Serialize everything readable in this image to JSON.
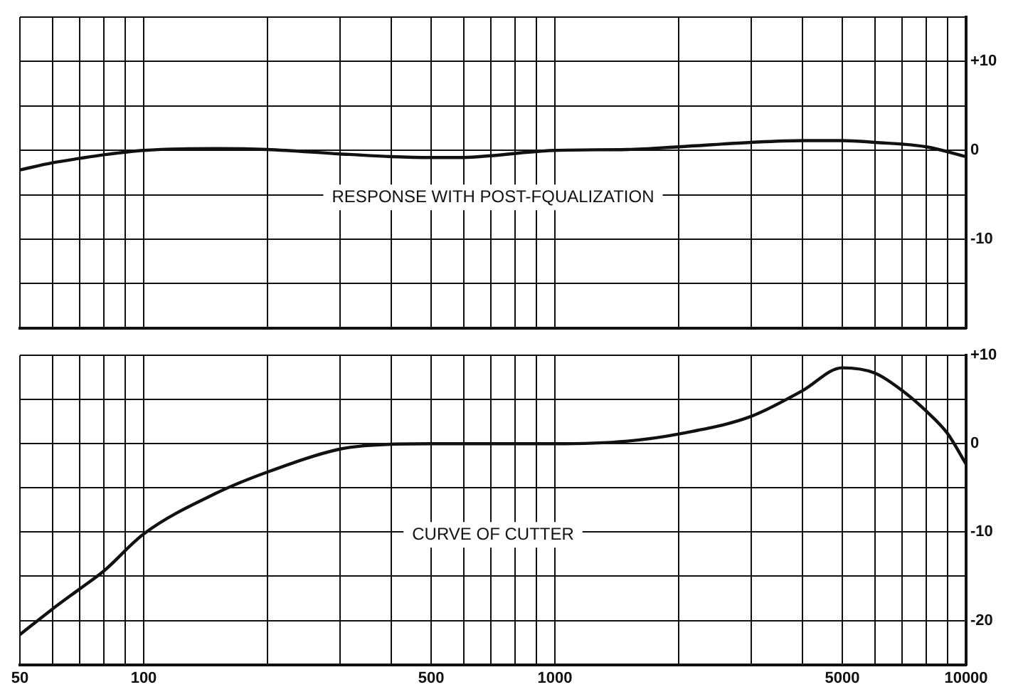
{
  "chart_data": [
    {
      "type": "line",
      "log": "x",
      "grid": true,
      "tick_labels": "y",
      "xlim": [
        50,
        10000
      ],
      "xticks": [
        50,
        {
          "value": 60,
          "label": null
        },
        {
          "value": 70,
          "label": null
        },
        {
          "value": 80,
          "label": null
        },
        {
          "value": 90,
          "label": null
        },
        100,
        {
          "value": 200,
          "label": null
        },
        {
          "value": 300,
          "label": null
        },
        {
          "value": 400,
          "label": null
        },
        500,
        {
          "value": 600,
          "label": null
        },
        {
          "value": 700,
          "label": null
        },
        {
          "value": 800,
          "label": null
        },
        {
          "value": 900,
          "label": null
        },
        1000,
        {
          "value": 2000,
          "label": null
        },
        {
          "value": 3000,
          "label": null
        },
        {
          "value": 4000,
          "label": null
        },
        5000,
        {
          "value": 6000,
          "label": null
        },
        {
          "value": 7000,
          "label": null
        },
        {
          "value": 8000,
          "label": null
        },
        {
          "value": 9000,
          "label": null
        },
        10000
      ],
      "ylim": [
        -20,
        15
      ],
      "yticks": [
        {
          "value": -20,
          "label": null
        },
        {
          "value": -15,
          "label": null
        },
        -10,
        {
          "value": -5,
          "label": null
        },
        0,
        {
          "value": 5,
          "label": null
        },
        {
          "value": 10,
          "label": "+10"
        },
        {
          "value": 15,
          "label": null
        }
      ],
      "series": [
        {
          "color": "#111111",
          "x": [
            50,
            60,
            70,
            80,
            100,
            150,
            200,
            300,
            400,
            500,
            600,
            700,
            1000,
            1500,
            2000,
            3000,
            4000,
            5000,
            6000,
            8000,
            10000
          ],
          "values": [
            -2.2,
            -1.4,
            -0.9,
            -0.5,
            0,
            0.2,
            0.1,
            -0.4,
            -0.7,
            -0.8,
            -0.8,
            -0.6,
            0,
            0.1,
            0.4,
            0.9,
            1.1,
            1.1,
            0.9,
            0.4,
            -0.7
          ]
        }
      ],
      "annotations": [
        "RESPONSE WITH POST-FQUALIZATION"
      ]
    },
    {
      "type": "line",
      "log": "x",
      "grid": true,
      "xlim": [
        50,
        10000
      ],
      "xticks": [
        50,
        {
          "value": 60,
          "label": null
        },
        {
          "value": 70,
          "label": null
        },
        {
          "value": 80,
          "label": null
        },
        {
          "value": 90,
          "label": null
        },
        100,
        {
          "value": 200,
          "label": null
        },
        {
          "value": 300,
          "label": null
        },
        {
          "value": 400,
          "label": null
        },
        500,
        {
          "value": 600,
          "label": null
        },
        {
          "value": 700,
          "label": null
        },
        {
          "value": 800,
          "label": null
        },
        {
          "value": 900,
          "label": null
        },
        1000,
        {
          "value": 2000,
          "label": null
        },
        {
          "value": 3000,
          "label": null
        },
        {
          "value": 4000,
          "label": null
        },
        5000,
        {
          "value": 6000,
          "label": null
        },
        {
          "value": 7000,
          "label": null
        },
        {
          "value": 8000,
          "label": null
        },
        {
          "value": 9000,
          "label": null
        },
        10000
      ],
      "ylim": [
        -25,
        10
      ],
      "yticks": [
        {
          "value": -25,
          "label": null
        },
        -20,
        {
          "value": -15,
          "label": null
        },
        -10,
        {
          "value": -5,
          "label": null
        },
        0,
        {
          "value": 5,
          "label": null
        },
        {
          "value": 10,
          "label": "+10"
        }
      ],
      "series": [
        {
          "color": "#111111",
          "x": [
            50,
            60,
            70,
            80,
            100,
            150,
            200,
            300,
            350,
            500,
            1000,
            1500,
            2000,
            3000,
            4000,
            5000,
            6000,
            7000,
            8000,
            9000,
            10000
          ],
          "values": [
            -21.6,
            -18.7,
            -16.4,
            -14.4,
            -10.2,
            -5.6,
            -3.2,
            -0.6,
            -0.2,
            0,
            0,
            0.3,
            1.1,
            3.1,
            6,
            8.6,
            8,
            6,
            3.7,
            1.2,
            -2.3
          ]
        }
      ],
      "annotations": [
        "CURVE OF CUTTER"
      ]
    }
  ]
}
